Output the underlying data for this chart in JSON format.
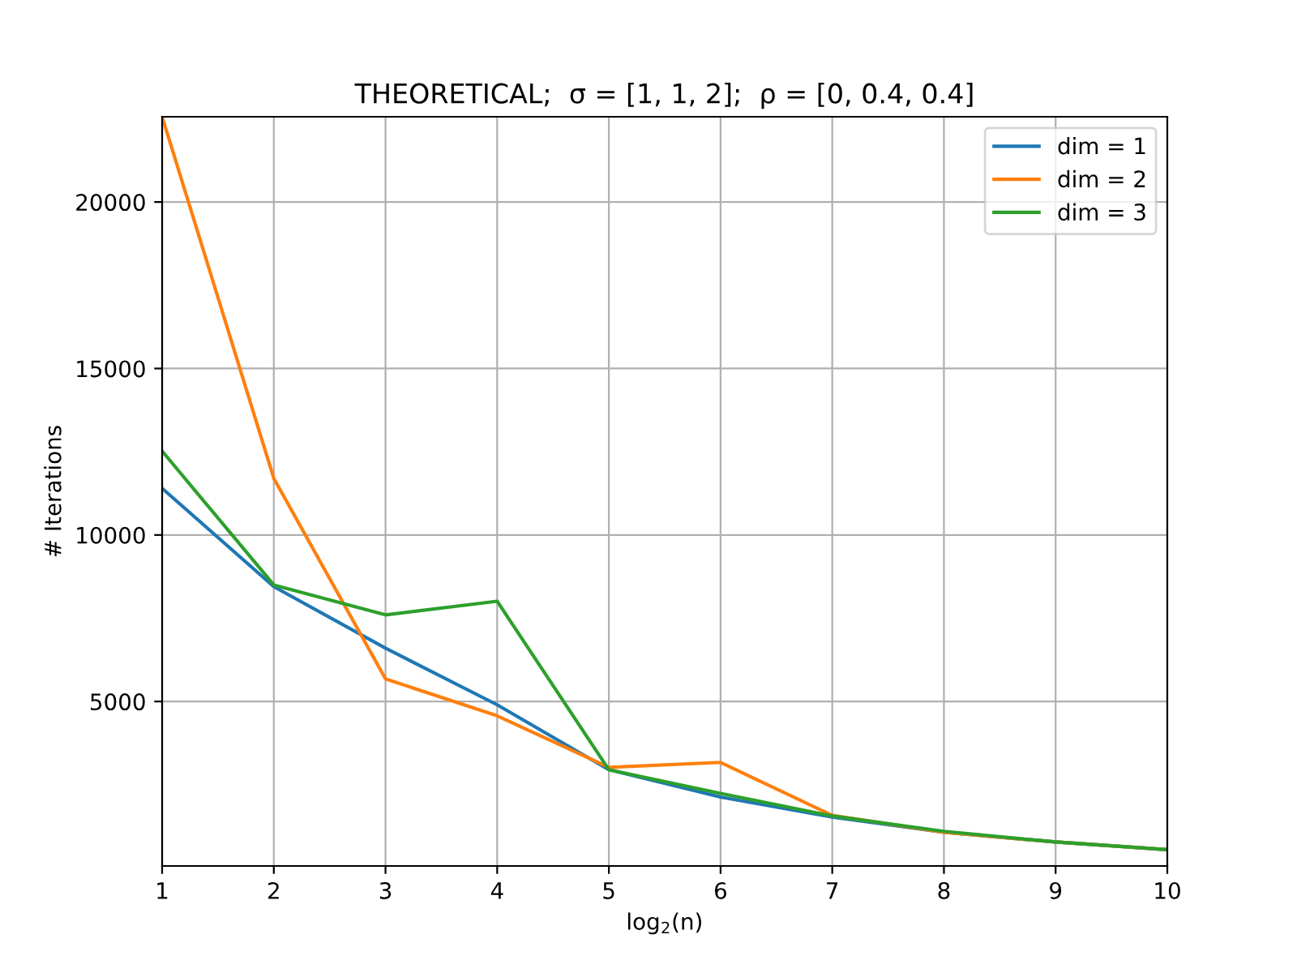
{
  "chart_data": {
    "type": "line",
    "title": "THEORETICAL;  σ = [1, 1, 2];  ρ = [0, 0.4, 0.4]",
    "xlabel": "log$_{2}$(n)",
    "ylabel": "# Iterations",
    "x": [
      1,
      2,
      3,
      4,
      5,
      6,
      7,
      8,
      9,
      10
    ],
    "series": [
      {
        "name": "dim = 1",
        "color": "#1f77b4",
        "values": [
          11400,
          8450,
          6600,
          4900,
          2950,
          2130,
          1530,
          1070,
          780,
          550
        ]
      },
      {
        "name": "dim = 2",
        "color": "#ff7f0e",
        "values": [
          22560,
          11700,
          5680,
          4570,
          3020,
          3170,
          1580,
          1070,
          780,
          550
        ]
      },
      {
        "name": "dim = 3",
        "color": "#2ca02c",
        "values": [
          12520,
          8500,
          7600,
          8010,
          2950,
          2240,
          1560,
          1100,
          780,
          550
        ]
      }
    ],
    "xlim": [
      1,
      10
    ],
    "xticks": [
      1,
      2,
      3,
      4,
      5,
      6,
      7,
      8,
      9,
      10
    ],
    "ylim": [
      60,
      22560
    ],
    "yticks": [
      5000,
      10000,
      15000,
      20000
    ],
    "grid": true,
    "legend": "top right",
    "marker": "none",
    "line_style": "solid"
  }
}
